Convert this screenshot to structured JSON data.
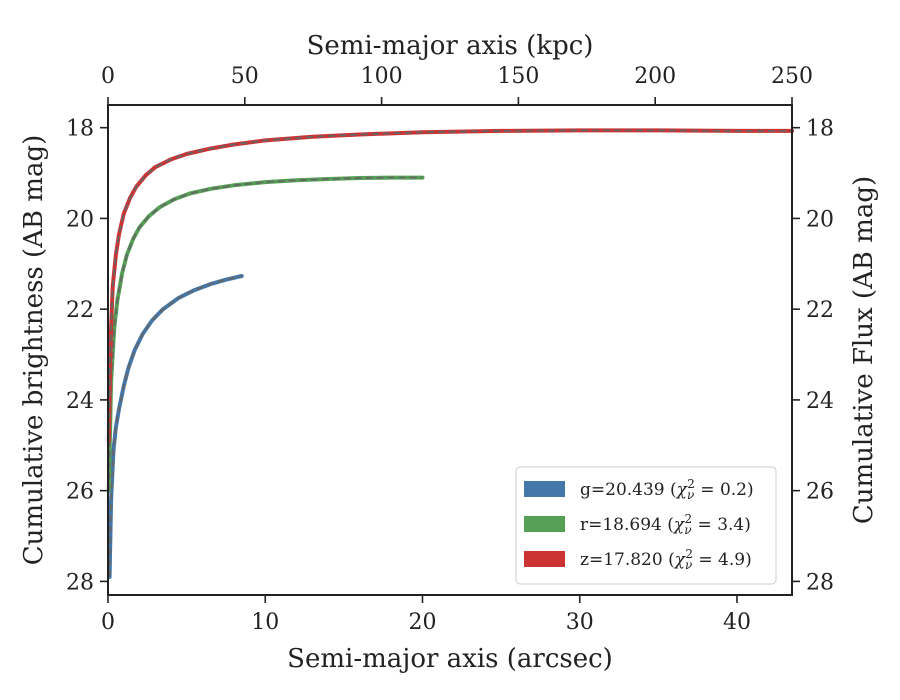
{
  "chart_data": {
    "type": "line",
    "title": "",
    "xlabel": "Semi-major axis (arcsec)",
    "xlabel_top": "Semi-major axis (kpc)",
    "ylabel": "Cumulative brightness (AB mag)",
    "ylabel_right": "Cumulative Flux (AB mag)",
    "xlim": [
      0,
      43.5
    ],
    "xlim_top": [
      0,
      250
    ],
    "ylim": [
      28.3,
      17.5
    ],
    "y_inverted": true,
    "xticks": [
      0,
      10,
      20,
      30,
      40
    ],
    "xticks_top": [
      0,
      50,
      100,
      150,
      200,
      250
    ],
    "yticks": [
      18,
      20,
      22,
      24,
      26,
      28
    ],
    "grid": false,
    "legend_position": "lower-right",
    "series": [
      {
        "name": "g=20.439",
        "chi2": "0.2",
        "color": "#4477aa",
        "x": [
          0.1,
          0.2,
          0.35,
          0.5,
          0.7,
          1.0,
          1.3,
          1.7,
          2.2,
          2.8,
          3.5,
          4.5,
          5.5,
          6.5,
          7.5,
          8.5
        ],
        "y": [
          27.9,
          26.2,
          25.1,
          24.6,
          24.2,
          23.7,
          23.3,
          22.9,
          22.55,
          22.25,
          22.0,
          21.75,
          21.58,
          21.45,
          21.35,
          21.27
        ]
      },
      {
        "name": "r=18.694",
        "chi2": "3.4",
        "color": "#55a055",
        "x": [
          0.05,
          0.2,
          0.4,
          0.6,
          0.9,
          1.2,
          1.6,
          2.0,
          2.6,
          3.3,
          4.2,
          5.2,
          6.5,
          8.0,
          10.0,
          12.0,
          14.0,
          16.0,
          18.0,
          20.0
        ],
        "y": [
          26.0,
          23.6,
          22.4,
          21.8,
          21.2,
          20.8,
          20.45,
          20.2,
          19.95,
          19.75,
          19.58,
          19.45,
          19.35,
          19.27,
          19.2,
          19.16,
          19.13,
          19.11,
          19.1,
          19.1
        ]
      },
      {
        "name": "z=17.820",
        "chi2": "4.9",
        "color": "#cc3333",
        "x": [
          0.05,
          0.15,
          0.3,
          0.5,
          0.7,
          1.0,
          1.4,
          1.8,
          2.4,
          3.0,
          4.0,
          5.0,
          6.5,
          8.0,
          10.0,
          13.0,
          16.0,
          20.0,
          25.0,
          30.0,
          35.0,
          40.0,
          43.5
        ],
        "y": [
          24.9,
          22.8,
          21.5,
          20.8,
          20.35,
          19.9,
          19.55,
          19.3,
          19.05,
          18.87,
          18.7,
          18.58,
          18.46,
          18.37,
          18.28,
          18.2,
          18.15,
          18.1,
          18.07,
          18.06,
          18.06,
          18.07,
          18.07
        ]
      }
    ]
  }
}
